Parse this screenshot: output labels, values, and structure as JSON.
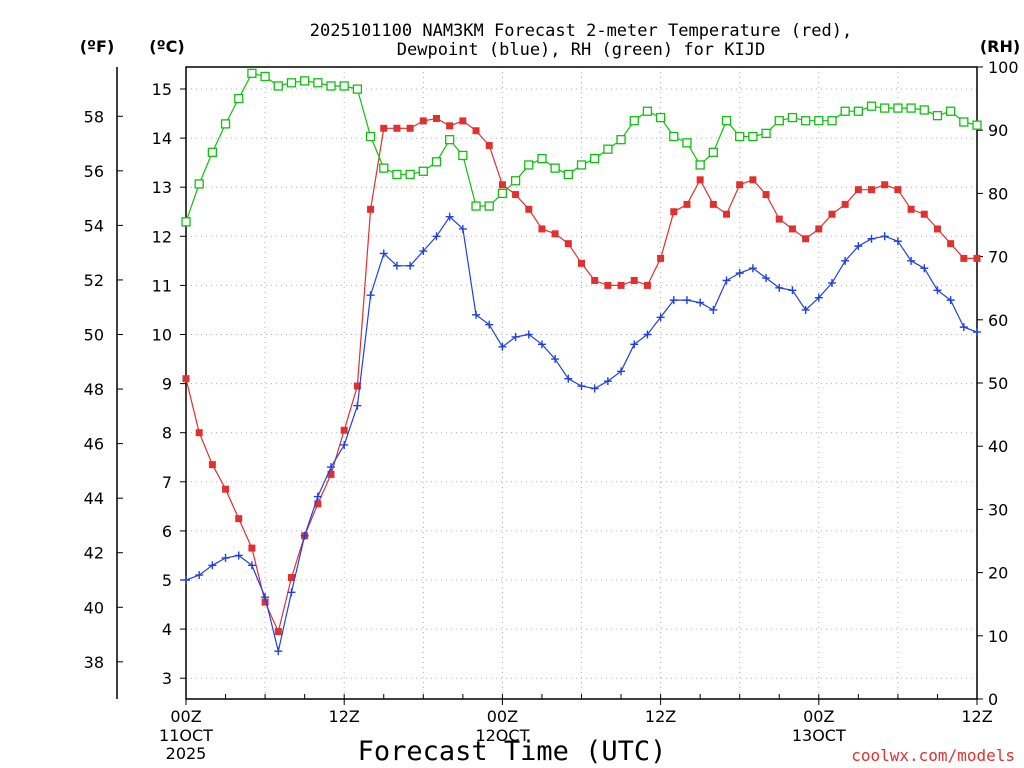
{
  "chart_data": {
    "type": "line",
    "title_line1": "2025101100 NAM3KM Forecast 2-meter Temperature (red),",
    "title_line2": "Dewpoint (blue), RH (green) for KIJD",
    "unit_f": "(ºF)",
    "unit_c": "(ºC)",
    "unit_rh": "(RH)",
    "xlabel": "Forecast Time (UTC)",
    "credit": "coolwx.com/models",
    "x_unit": "forecast hour",
    "xlim": [
      0,
      60
    ],
    "ylim_c": [
      2.6,
      15.4
    ],
    "ylim_rh": [
      0,
      100
    ],
    "f_ticks": [
      "38",
      "40",
      "42",
      "44",
      "46",
      "48",
      "50",
      "52",
      "54",
      "56",
      "58"
    ],
    "c_ticks": [
      "3",
      "4",
      "5",
      "6",
      "7",
      "8",
      "9",
      "10",
      "11",
      "12",
      "13",
      "14",
      "15"
    ],
    "rh_ticks": [
      "0",
      "10",
      "20",
      "30",
      "40",
      "50",
      "60",
      "70",
      "80",
      "90",
      "100"
    ],
    "x_ticks": [
      {
        "hour": 0,
        "line1": "00Z",
        "line2": "11OCT",
        "line3": "2025"
      },
      {
        "hour": 12,
        "line1": "12Z",
        "line2": "",
        "line3": ""
      },
      {
        "hour": 24,
        "line1": "00Z",
        "line2": "12OCT",
        "line3": ""
      },
      {
        "hour": 36,
        "line1": "12Z",
        "line2": "",
        "line3": ""
      },
      {
        "hour": 48,
        "line1": "00Z",
        "line2": "13OCT",
        "line3": ""
      },
      {
        "hour": 60,
        "line1": "12Z",
        "line2": "",
        "line3": ""
      }
    ],
    "x": [
      0,
      1,
      2,
      3,
      4,
      5,
      6,
      7,
      8,
      9,
      10,
      11,
      12,
      13,
      14,
      15,
      16,
      17,
      18,
      19,
      20,
      21,
      22,
      23,
      24,
      25,
      26,
      27,
      28,
      29,
      30,
      31,
      32,
      33,
      34,
      35,
      36,
      37,
      38,
      39,
      40,
      41,
      42,
      43,
      44,
      45,
      46,
      47,
      48,
      49,
      50,
      51,
      52,
      53,
      54,
      55,
      56,
      57,
      58,
      59,
      60
    ],
    "series": [
      {
        "name": "Temperature (°C)",
        "color": "#e03030",
        "marker": "filled-square",
        "axis": "left",
        "values": [
          9.1,
          8.0,
          7.35,
          6.85,
          6.25,
          5.65,
          4.55,
          3.95,
          5.05,
          5.9,
          6.55,
          7.15,
          8.05,
          8.95,
          12.55,
          14.2,
          14.2,
          14.2,
          14.35,
          14.4,
          14.25,
          14.35,
          14.15,
          13.85,
          13.05,
          12.85,
          12.55,
          12.15,
          12.05,
          11.85,
          11.45,
          11.1,
          11.0,
          11.0,
          11.1,
          11.0,
          11.55,
          12.5,
          12.65,
          13.15,
          12.65,
          12.45,
          13.05,
          13.15,
          12.85,
          12.35,
          12.15,
          11.95,
          12.15,
          12.45,
          12.65,
          12.95,
          12.95,
          13.05,
          12.95,
          12.55,
          12.45,
          12.15,
          11.85,
          11.55,
          11.55
        ]
      },
      {
        "name": "Dewpoint (°C)",
        "color": "#2040e0",
        "marker": "plus",
        "axis": "left",
        "values": [
          5.0,
          5.1,
          5.3,
          5.45,
          5.5,
          5.3,
          4.65,
          3.55,
          4.75,
          5.9,
          6.7,
          7.3,
          7.75,
          8.55,
          10.8,
          11.65,
          11.4,
          11.4,
          11.7,
          12.0,
          12.4,
          12.15,
          10.4,
          10.2,
          9.75,
          9.95,
          10.0,
          9.8,
          9.5,
          9.1,
          8.95,
          8.9,
          9.05,
          9.25,
          9.8,
          10.0,
          10.35,
          10.7,
          10.7,
          10.65,
          10.5,
          11.1,
          11.25,
          11.35,
          11.15,
          10.95,
          10.9,
          10.5,
          10.75,
          11.05,
          11.5,
          11.8,
          11.95,
          12.0,
          11.9,
          11.5,
          11.35,
          10.9,
          10.7,
          10.15,
          10.05
        ]
      },
      {
        "name": "RH (%)",
        "color": "#10c010",
        "marker": "open-square",
        "axis": "right",
        "values": [
          75.5,
          81.5,
          86.5,
          91,
          95,
          99,
          98.5,
          97,
          97.5,
          97.8,
          97.5,
          97,
          97,
          96.5,
          89,
          84,
          83,
          83,
          83.5,
          85,
          88.5,
          86,
          78,
          78,
          80,
          82,
          84.5,
          85.5,
          84,
          83,
          84.5,
          85.5,
          87,
          88.5,
          91.5,
          93,
          92,
          89,
          88,
          84.5,
          86.5,
          91.5,
          89,
          89,
          89.5,
          91.5,
          92,
          91.5,
          91.5,
          91.5,
          93,
          93,
          93.8,
          93.5,
          93.5,
          93.5,
          93.2,
          92.3,
          93,
          91.3,
          90.8
        ]
      }
    ]
  }
}
